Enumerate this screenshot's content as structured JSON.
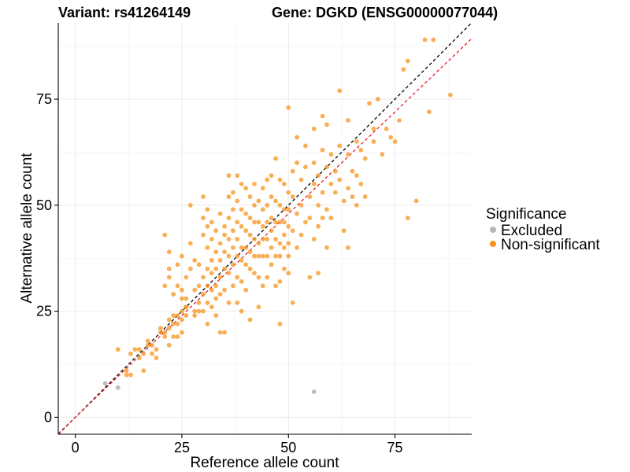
{
  "chart_data": {
    "type": "scatter",
    "title_left": "Variant: rs41264149",
    "title_right": "Gene: DGKD (ENSG00000077044)",
    "xlabel": "Reference allele count",
    "ylabel": "Alternative allele count",
    "xlim": [
      -4,
      93
    ],
    "ylim": [
      -4,
      93
    ],
    "x_ticks": [
      0,
      25,
      50,
      75
    ],
    "y_ticks": [
      0,
      25,
      50,
      75
    ],
    "grid": true,
    "legend": {
      "title": "Significance",
      "position": "right",
      "entries": [
        {
          "label": "Excluded",
          "color": "#b5b5b5"
        },
        {
          "label": "Non-significant",
          "color": "#f7941d"
        }
      ]
    },
    "reference_lines": [
      {
        "name": "identity",
        "slope": 1.0,
        "intercept": 0,
        "color": "#000000",
        "style": "dashed"
      },
      {
        "name": "fitted",
        "slope": 0.96,
        "intercept": 0,
        "color": "#e8222a",
        "style": "dashed"
      }
    ],
    "series": [
      {
        "name": "Excluded",
        "color": "#b5b5b5",
        "points": [
          [
            7,
            8
          ],
          [
            10,
            7
          ],
          [
            56,
            6
          ]
        ]
      },
      {
        "name": "Non-significant",
        "color": "#f7941d",
        "points": [
          [
            10,
            16
          ],
          [
            12,
            11
          ],
          [
            12,
            10
          ],
          [
            13,
            15
          ],
          [
            13,
            10
          ],
          [
            14,
            16
          ],
          [
            15,
            14
          ],
          [
            15,
            16
          ],
          [
            16,
            11
          ],
          [
            16,
            15
          ],
          [
            17,
            17
          ],
          [
            17,
            18
          ],
          [
            18,
            17
          ],
          [
            18,
            15
          ],
          [
            19,
            14
          ],
          [
            19,
            16
          ],
          [
            20,
            20
          ],
          [
            20,
            21
          ],
          [
            21,
            20
          ],
          [
            21,
            19
          ],
          [
            22,
            17
          ],
          [
            22,
            21
          ],
          [
            22,
            23
          ],
          [
            23,
            19
          ],
          [
            23,
            24
          ],
          [
            23,
            22
          ],
          [
            24,
            19
          ],
          [
            24,
            22
          ],
          [
            24,
            24
          ],
          [
            25,
            20
          ],
          [
            25,
            23
          ],
          [
            25,
            25
          ],
          [
            26,
            24
          ],
          [
            26,
            26
          ],
          [
            21,
            43
          ],
          [
            22,
            39
          ],
          [
            22,
            33
          ],
          [
            21,
            31
          ],
          [
            22,
            35
          ],
          [
            23,
            29
          ],
          [
            24,
            31
          ],
          [
            24,
            36
          ],
          [
            25,
            38
          ],
          [
            25,
            30
          ],
          [
            25,
            28
          ],
          [
            26,
            33
          ],
          [
            26,
            28
          ],
          [
            26,
            26
          ],
          [
            27,
            41
          ],
          [
            27,
            50
          ],
          [
            27,
            35
          ],
          [
            28,
            37
          ],
          [
            28,
            30
          ],
          [
            28,
            25
          ],
          [
            28,
            24
          ],
          [
            29,
            31
          ],
          [
            29,
            27
          ],
          [
            29,
            36
          ],
          [
            29,
            25
          ],
          [
            30,
            52
          ],
          [
            30,
            47
          ],
          [
            30,
            43
          ],
          [
            30,
            33
          ],
          [
            30,
            29
          ],
          [
            30,
            25
          ],
          [
            31,
            49
          ],
          [
            31,
            45
          ],
          [
            31,
            40
          ],
          [
            31,
            35
          ],
          [
            31,
            31
          ],
          [
            31,
            27
          ],
          [
            31,
            22
          ],
          [
            32,
            46
          ],
          [
            32,
            42
          ],
          [
            32,
            37
          ],
          [
            32,
            34
          ],
          [
            32,
            30
          ],
          [
            32,
            26
          ],
          [
            33,
            44
          ],
          [
            33,
            39
          ],
          [
            33,
            35
          ],
          [
            33,
            31
          ],
          [
            33,
            28
          ],
          [
            33,
            24
          ],
          [
            34,
            48
          ],
          [
            34,
            41
          ],
          [
            34,
            37
          ],
          [
            34,
            33
          ],
          [
            34,
            29
          ],
          [
            34,
            20
          ],
          [
            35,
            45
          ],
          [
            35,
            43
          ],
          [
            35,
            39
          ],
          [
            35,
            35
          ],
          [
            35,
            30
          ],
          [
            35,
            20
          ],
          [
            36,
            57
          ],
          [
            36,
            52
          ],
          [
            36,
            47
          ],
          [
            36,
            42
          ],
          [
            36,
            38
          ],
          [
            36,
            34
          ],
          [
            36,
            27
          ],
          [
            37,
            53
          ],
          [
            37,
            49
          ],
          [
            37,
            44
          ],
          [
            37,
            40
          ],
          [
            37,
            36
          ],
          [
            37,
            31
          ],
          [
            38,
            57
          ],
          [
            38,
            51
          ],
          [
            38,
            46
          ],
          [
            38,
            42
          ],
          [
            38,
            38
          ],
          [
            38,
            33
          ],
          [
            38,
            27
          ],
          [
            39,
            55
          ],
          [
            39,
            49
          ],
          [
            39,
            45
          ],
          [
            39,
            40
          ],
          [
            39,
            37
          ],
          [
            39,
            32
          ],
          [
            39,
            25
          ],
          [
            40,
            54
          ],
          [
            40,
            48
          ],
          [
            40,
            44
          ],
          [
            40,
            40
          ],
          [
            40,
            36
          ],
          [
            40,
            30
          ],
          [
            41,
            52
          ],
          [
            41,
            47
          ],
          [
            41,
            43
          ],
          [
            41,
            39
          ],
          [
            41,
            35
          ],
          [
            41,
            23
          ],
          [
            42,
            55
          ],
          [
            42,
            50
          ],
          [
            42,
            46
          ],
          [
            42,
            42
          ],
          [
            42,
            38
          ],
          [
            42,
            34
          ],
          [
            43,
            51
          ],
          [
            43,
            46
          ],
          [
            43,
            41
          ],
          [
            43,
            38
          ],
          [
            43,
            33
          ],
          [
            43,
            26
          ],
          [
            44,
            54
          ],
          [
            44,
            49
          ],
          [
            44,
            45
          ],
          [
            44,
            42
          ],
          [
            44,
            38
          ],
          [
            44,
            31
          ],
          [
            45,
            56
          ],
          [
            45,
            50
          ],
          [
            45,
            46
          ],
          [
            45,
            42
          ],
          [
            45,
            38
          ],
          [
            45,
            33
          ],
          [
            46,
            57
          ],
          [
            46,
            52
          ],
          [
            46,
            47
          ],
          [
            46,
            44
          ],
          [
            46,
            40
          ],
          [
            46,
            36
          ],
          [
            47,
            61
          ],
          [
            47,
            51
          ],
          [
            47,
            46
          ],
          [
            47,
            42
          ],
          [
            47,
            38
          ],
          [
            47,
            31
          ],
          [
            48,
            56
          ],
          [
            48,
            50
          ],
          [
            48,
            46
          ],
          [
            48,
            41
          ],
          [
            48,
            38
          ],
          [
            48,
            32
          ],
          [
            48,
            22
          ],
          [
            49,
            55
          ],
          [
            49,
            49
          ],
          [
            49,
            46
          ],
          [
            49,
            43
          ],
          [
            49,
            40
          ],
          [
            49,
            35
          ],
          [
            50,
            53
          ],
          [
            50,
            49
          ],
          [
            50,
            45
          ],
          [
            50,
            41
          ],
          [
            50,
            38
          ],
          [
            50,
            34
          ],
          [
            50,
            73
          ],
          [
            51,
            58
          ],
          [
            51,
            52
          ],
          [
            51,
            44
          ],
          [
            51,
            27
          ],
          [
            52,
            66
          ],
          [
            52,
            60
          ],
          [
            52,
            48
          ],
          [
            52,
            40
          ],
          [
            53,
            56
          ],
          [
            53,
            50
          ],
          [
            53,
            43
          ],
          [
            54,
            64
          ],
          [
            54,
            59
          ],
          [
            54,
            46
          ],
          [
            55,
            52
          ],
          [
            55,
            47
          ],
          [
            55,
            33
          ],
          [
            56,
            68
          ],
          [
            56,
            60
          ],
          [
            56,
            55
          ],
          [
            56,
            42
          ],
          [
            57,
            57
          ],
          [
            57,
            50
          ],
          [
            57,
            45
          ],
          [
            57,
            34
          ],
          [
            58,
            71
          ],
          [
            58,
            63
          ],
          [
            58,
            53
          ],
          [
            58,
            47
          ],
          [
            59,
            69
          ],
          [
            59,
            59
          ],
          [
            59,
            49
          ],
          [
            59,
            40
          ],
          [
            60,
            62
          ],
          [
            60,
            55
          ],
          [
            60,
            47
          ],
          [
            61,
            58
          ],
          [
            61,
            53
          ],
          [
            62,
            77
          ],
          [
            62,
            64
          ],
          [
            62,
            56
          ],
          [
            63,
            51
          ],
          [
            63,
            44
          ],
          [
            64,
            70
          ],
          [
            64,
            62
          ],
          [
            64,
            54
          ],
          [
            64,
            40
          ],
          [
            65,
            58
          ],
          [
            65,
            52
          ],
          [
            66,
            65
          ],
          [
            66,
            57
          ],
          [
            66,
            50
          ],
          [
            67,
            63
          ],
          [
            67,
            55
          ],
          [
            68,
            52
          ],
          [
            68,
            61
          ],
          [
            69,
            74
          ],
          [
            70,
            65
          ],
          [
            70,
            68
          ],
          [
            71,
            75
          ],
          [
            72,
            62
          ],
          [
            73,
            68
          ],
          [
            74,
            66
          ],
          [
            75,
            65
          ],
          [
            76,
            70
          ],
          [
            77,
            82
          ],
          [
            78,
            84
          ],
          [
            78,
            47
          ],
          [
            80,
            51
          ],
          [
            82,
            89
          ],
          [
            83,
            72
          ],
          [
            84,
            89
          ],
          [
            88,
            76
          ]
        ]
      }
    ]
  }
}
